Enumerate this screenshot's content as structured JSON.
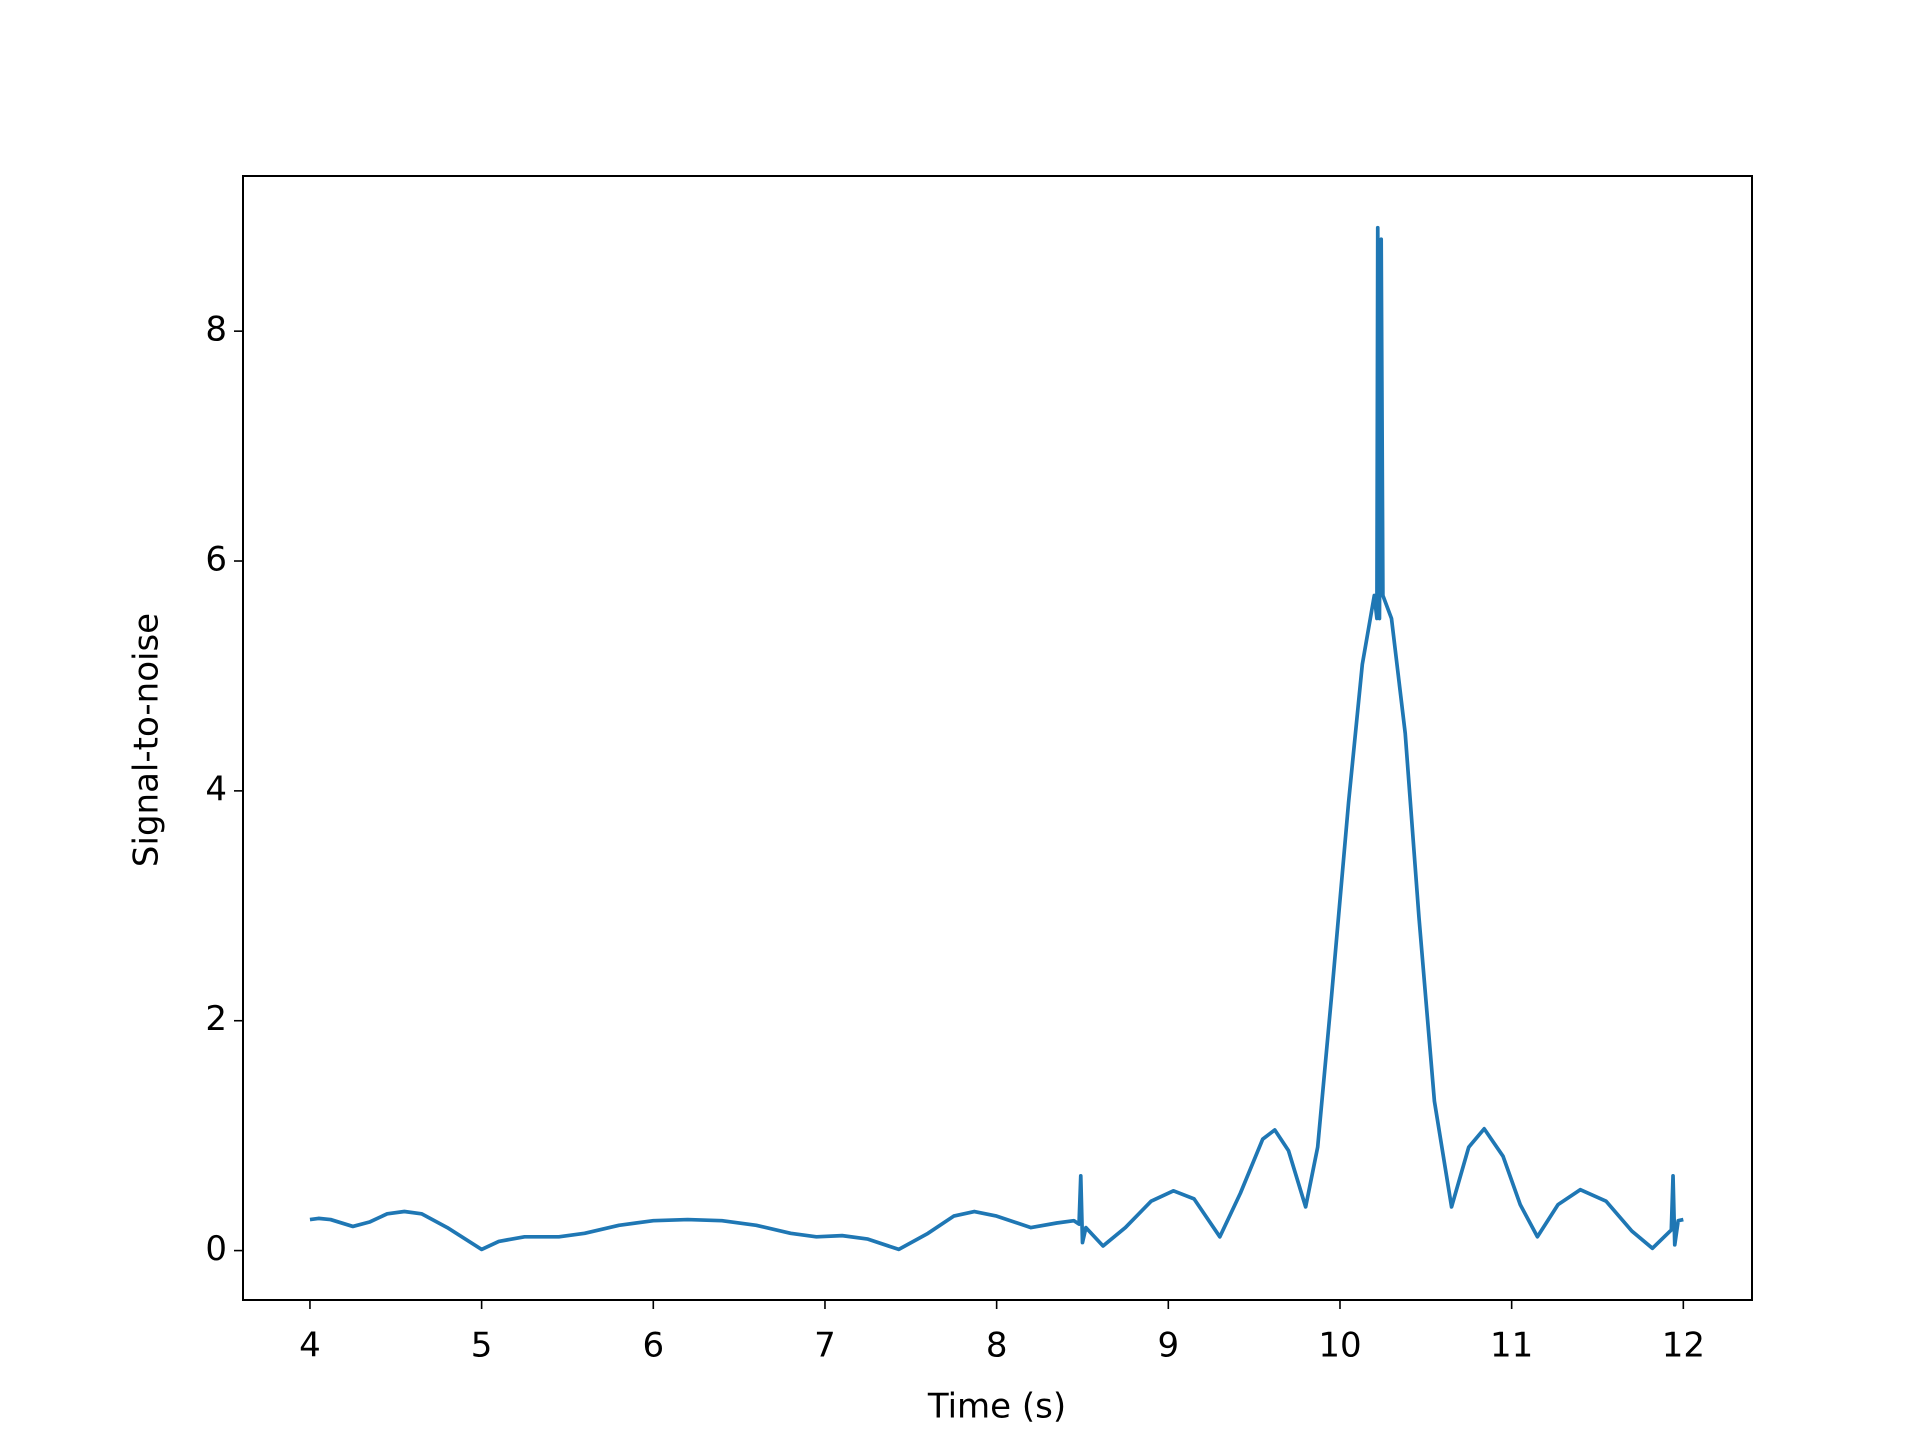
{
  "chart_data": {
    "type": "line",
    "xlabel": "Time (s)",
    "ylabel": "Signal-to-noise",
    "x": [
      4.0,
      4.05,
      4.12,
      4.25,
      4.35,
      4.45,
      4.55,
      4.65,
      4.8,
      5.0,
      5.1,
      5.25,
      5.45,
      5.6,
      5.8,
      6.0,
      6.2,
      6.4,
      6.6,
      6.8,
      6.95,
      7.1,
      7.25,
      7.43,
      7.6,
      7.75,
      7.87,
      8.0,
      8.2,
      8.35,
      8.45,
      8.48,
      8.49,
      8.5,
      8.52,
      8.62,
      8.75,
      8.9,
      9.03,
      9.15,
      9.3,
      9.42,
      9.55,
      9.62,
      9.7,
      9.8,
      9.87,
      9.95,
      10.05,
      10.13,
      10.2,
      10.215,
      10.22,
      10.23,
      10.24,
      10.25,
      10.3,
      10.38,
      10.46,
      10.55,
      10.65,
      10.75,
      10.84,
      10.95,
      11.05,
      11.15,
      11.27,
      11.4,
      11.55,
      11.7,
      11.82,
      11.93,
      11.94,
      11.95,
      11.97,
      12.0
    ],
    "series": [
      {
        "color": "#1f77b4",
        "values": [
          0.27,
          0.28,
          0.27,
          0.21,
          0.25,
          0.32,
          0.34,
          0.32,
          0.2,
          0.01,
          0.08,
          0.12,
          0.12,
          0.15,
          0.22,
          0.26,
          0.27,
          0.26,
          0.22,
          0.15,
          0.12,
          0.13,
          0.1,
          0.01,
          0.15,
          0.3,
          0.34,
          0.3,
          0.2,
          0.24,
          0.26,
          0.23,
          0.65,
          0.07,
          0.2,
          0.04,
          0.2,
          0.43,
          0.52,
          0.45,
          0.12,
          0.5,
          0.97,
          1.05,
          0.87,
          0.38,
          0.9,
          2.2,
          3.9,
          5.1,
          5.7,
          5.5,
          8.9,
          5.5,
          8.8,
          5.7,
          5.5,
          4.5,
          2.9,
          1.3,
          0.38,
          0.9,
          1.06,
          0.82,
          0.4,
          0.12,
          0.4,
          0.53,
          0.43,
          0.17,
          0.02,
          0.18,
          0.65,
          0.05,
          0.26,
          0.27
        ]
      }
    ],
    "xlim": [
      3.61,
      12.4
    ],
    "ylim": [
      -0.43,
      9.35
    ],
    "xticks": [
      4,
      5,
      6,
      7,
      8,
      9,
      10,
      11,
      12
    ],
    "yticks": [
      0,
      2,
      4,
      6,
      8
    ]
  }
}
